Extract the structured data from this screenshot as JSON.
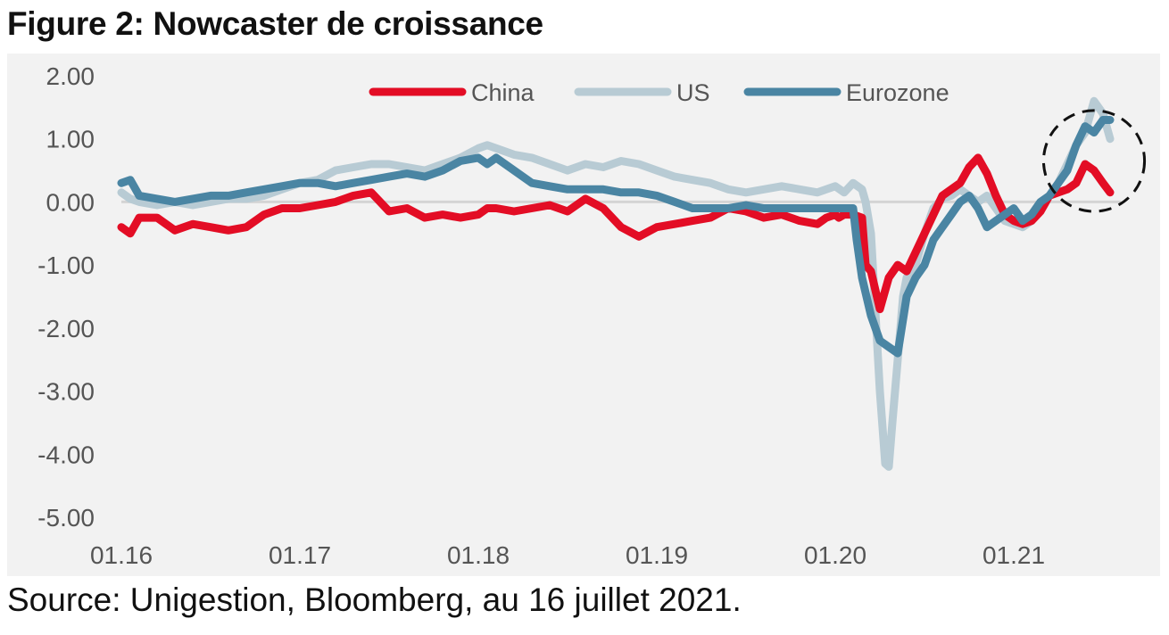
{
  "title": "Figure 2: Nowcaster de croissance",
  "source": "Source: Unigestion, Bloomberg, au 16 juillet 2021.",
  "chart_data": {
    "type": "line",
    "title": "Figure 2: Nowcaster de croissance",
    "ylim": [
      -5,
      2
    ],
    "yticks": [
      "2.00",
      "1.00",
      "0.00",
      "-1.00",
      "-2.00",
      "-3.00",
      "-4.00",
      "-5.00"
    ],
    "xlim": [
      2016.0,
      2021.6
    ],
    "xticks": [
      {
        "x": 2016.0,
        "label": "01.16"
      },
      {
        "x": 2017.0,
        "label": "01.17"
      },
      {
        "x": 2018.0,
        "label": "01.18"
      },
      {
        "x": 2019.0,
        "label": "01.19"
      },
      {
        "x": 2020.0,
        "label": "01.20"
      },
      {
        "x": 2021.0,
        "label": "01.21"
      }
    ],
    "legend": "top",
    "grid": false,
    "highlight": {
      "shape": "dashed-circle",
      "cx": 2021.45,
      "cy": 0.65,
      "r": 0.8
    },
    "series": [
      {
        "name": "China",
        "color": "#e30d25",
        "x": [
          2016.0,
          2016.05,
          2016.1,
          2016.2,
          2016.3,
          2016.4,
          2016.5,
          2016.6,
          2016.7,
          2016.8,
          2016.9,
          2017.0,
          2017.1,
          2017.2,
          2017.3,
          2017.4,
          2017.5,
          2017.6,
          2017.7,
          2017.8,
          2017.9,
          2018.0,
          2018.05,
          2018.1,
          2018.2,
          2018.3,
          2018.4,
          2018.5,
          2018.6,
          2018.7,
          2018.8,
          2018.9,
          2019.0,
          2019.1,
          2019.2,
          2019.3,
          2019.4,
          2019.5,
          2019.6,
          2019.7,
          2019.8,
          2019.9,
          2019.95,
          2020.0,
          2020.02,
          2020.05,
          2020.1,
          2020.15,
          2020.17,
          2020.2,
          2020.25,
          2020.3,
          2020.35,
          2020.4,
          2020.5,
          2020.55,
          2020.6,
          2020.65,
          2020.7,
          2020.75,
          2020.8,
          2020.85,
          2020.9,
          2020.95,
          2021.0,
          2021.05,
          2021.1,
          2021.15,
          2021.2,
          2021.25,
          2021.3,
          2021.35,
          2021.4,
          2021.45,
          2021.5,
          2021.54
        ],
        "y": [
          -0.4,
          -0.5,
          -0.25,
          -0.25,
          -0.45,
          -0.35,
          -0.4,
          -0.45,
          -0.4,
          -0.2,
          -0.1,
          -0.1,
          -0.05,
          0.0,
          0.1,
          0.15,
          -0.15,
          -0.1,
          -0.25,
          -0.2,
          -0.25,
          -0.2,
          -0.1,
          -0.1,
          -0.15,
          -0.1,
          -0.05,
          -0.15,
          0.05,
          -0.1,
          -0.4,
          -0.55,
          -0.4,
          -0.35,
          -0.3,
          -0.25,
          -0.1,
          -0.15,
          -0.25,
          -0.2,
          -0.3,
          -0.35,
          -0.25,
          -0.2,
          -0.25,
          -0.2,
          -0.2,
          -0.25,
          -1.0,
          -1.1,
          -1.7,
          -1.2,
          -1.0,
          -1.1,
          -0.5,
          -0.2,
          0.1,
          0.2,
          0.3,
          0.55,
          0.7,
          0.45,
          0.1,
          -0.2,
          -0.3,
          -0.35,
          -0.3,
          -0.15,
          0.1,
          0.15,
          0.2,
          0.3,
          0.6,
          0.5,
          0.3,
          0.15
        ]
      },
      {
        "name": "US",
        "color": "#b8cbd4",
        "x": [
          2016.0,
          2016.05,
          2016.1,
          2016.2,
          2016.3,
          2016.4,
          2016.5,
          2016.6,
          2016.7,
          2016.8,
          2016.9,
          2017.0,
          2017.1,
          2017.2,
          2017.3,
          2017.4,
          2017.5,
          2017.6,
          2017.7,
          2017.8,
          2017.9,
          2018.0,
          2018.05,
          2018.1,
          2018.2,
          2018.3,
          2018.4,
          2018.5,
          2018.6,
          2018.7,
          2018.8,
          2018.9,
          2019.0,
          2019.1,
          2019.2,
          2019.3,
          2019.4,
          2019.5,
          2019.6,
          2019.7,
          2019.8,
          2019.9,
          2019.95,
          2020.0,
          2020.05,
          2020.1,
          2020.15,
          2020.17,
          2020.2,
          2020.22,
          2020.25,
          2020.28,
          2020.3,
          2020.32,
          2020.35,
          2020.38,
          2020.4,
          2020.45,
          2020.5,
          2020.55,
          2020.6,
          2020.65,
          2020.7,
          2020.75,
          2020.8,
          2020.85,
          2020.9,
          2020.95,
          2021.0,
          2021.05,
          2021.1,
          2021.15,
          2021.2,
          2021.25,
          2021.3,
          2021.35,
          2021.4,
          2021.45,
          2021.5,
          2021.54
        ],
        "y": [
          0.15,
          0.05,
          0.0,
          -0.05,
          0.0,
          -0.05,
          0.0,
          0.05,
          0.05,
          0.1,
          0.2,
          0.3,
          0.35,
          0.5,
          0.55,
          0.6,
          0.6,
          0.55,
          0.5,
          0.6,
          0.7,
          0.85,
          0.9,
          0.85,
          0.75,
          0.7,
          0.6,
          0.5,
          0.6,
          0.55,
          0.65,
          0.6,
          0.5,
          0.4,
          0.35,
          0.3,
          0.2,
          0.15,
          0.2,
          0.25,
          0.2,
          0.15,
          0.2,
          0.25,
          0.15,
          0.3,
          0.2,
          0.0,
          -0.5,
          -1.5,
          -3.0,
          -4.15,
          -4.2,
          -3.5,
          -2.5,
          -1.5,
          -1.2,
          -1.0,
          -0.5,
          -0.1,
          0.05,
          0.1,
          0.2,
          0.1,
          0.0,
          0.1,
          -0.1,
          -0.3,
          -0.35,
          -0.4,
          -0.3,
          -0.1,
          0.1,
          0.3,
          0.6,
          0.9,
          1.1,
          1.6,
          1.4,
          1.0
        ]
      },
      {
        "name": "Eurozone",
        "color": "#4a85a3",
        "x": [
          2016.0,
          2016.05,
          2016.1,
          2016.2,
          2016.3,
          2016.4,
          2016.5,
          2016.6,
          2016.7,
          2016.8,
          2016.9,
          2017.0,
          2017.1,
          2017.2,
          2017.3,
          2017.4,
          2017.5,
          2017.6,
          2017.7,
          2017.8,
          2017.9,
          2018.0,
          2018.05,
          2018.1,
          2018.2,
          2018.3,
          2018.4,
          2018.5,
          2018.6,
          2018.7,
          2018.8,
          2018.9,
          2019.0,
          2019.1,
          2019.2,
          2019.3,
          2019.4,
          2019.5,
          2019.6,
          2019.7,
          2019.8,
          2019.9,
          2019.95,
          2020.0,
          2020.05,
          2020.1,
          2020.12,
          2020.15,
          2020.2,
          2020.25,
          2020.3,
          2020.35,
          2020.4,
          2020.45,
          2020.5,
          2020.55,
          2020.6,
          2020.65,
          2020.7,
          2020.75,
          2020.8,
          2020.85,
          2020.9,
          2020.95,
          2021.0,
          2021.05,
          2021.1,
          2021.15,
          2021.2,
          2021.25,
          2021.3,
          2021.35,
          2021.4,
          2021.45,
          2021.5,
          2021.54
        ],
        "y": [
          0.3,
          0.35,
          0.1,
          0.05,
          0.0,
          0.05,
          0.1,
          0.1,
          0.15,
          0.2,
          0.25,
          0.3,
          0.3,
          0.25,
          0.3,
          0.35,
          0.4,
          0.45,
          0.4,
          0.5,
          0.65,
          0.7,
          0.6,
          0.7,
          0.5,
          0.3,
          0.25,
          0.2,
          0.2,
          0.2,
          0.15,
          0.15,
          0.1,
          0.0,
          -0.1,
          -0.1,
          -0.1,
          -0.05,
          -0.1,
          -0.1,
          -0.1,
          -0.1,
          -0.1,
          -0.1,
          -0.1,
          -0.1,
          -0.6,
          -1.2,
          -1.8,
          -2.2,
          -2.3,
          -2.4,
          -1.5,
          -1.2,
          -1.0,
          -0.6,
          -0.4,
          -0.2,
          0.0,
          0.1,
          -0.1,
          -0.4,
          -0.3,
          -0.2,
          -0.1,
          -0.3,
          -0.2,
          0.0,
          0.1,
          0.3,
          0.5,
          0.9,
          1.2,
          1.1,
          1.3,
          1.3
        ]
      }
    ]
  }
}
